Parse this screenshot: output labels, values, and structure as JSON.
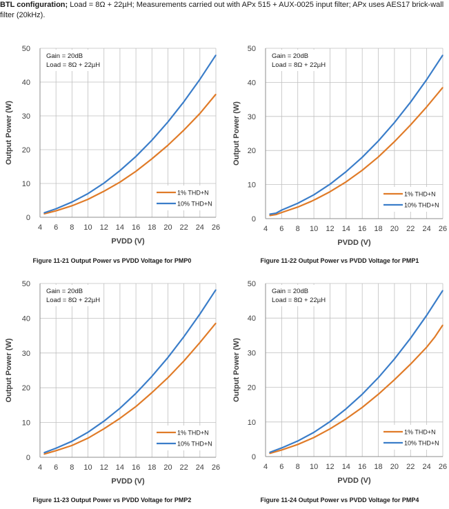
{
  "intro": {
    "bold": "BTL configuration;",
    "text": " Load = 8Ω + 22µH; Measurements carried out with APx 515 + AUX-0025 input filter; APx uses AES17 brick-wall filter (20kHz)."
  },
  "colors": {
    "series_1pct": "#E07B28",
    "series_10pct": "#3A7DC9",
    "grid": "#bfbfbf",
    "axis": "#8c8c8c"
  },
  "chart_data": [
    {
      "type": "line",
      "caption": "Figure 11-21 Output Power vs PVDD Voltage for PMP0",
      "annotation": [
        "Gain = 20dB",
        "Load = 8Ω + 22µH"
      ],
      "xlabel": "PVDD (V)",
      "ylabel": "Output Power (W)",
      "xlim": [
        4,
        26
      ],
      "ylim": [
        0,
        50
      ],
      "xticks": [
        4,
        6,
        8,
        10,
        12,
        14,
        16,
        18,
        20,
        22,
        24,
        26
      ],
      "yticks": [
        0,
        10,
        20,
        30,
        40,
        50
      ],
      "legend": "bottom-right",
      "grid": true,
      "series": [
        {
          "name": "1% THD+N",
          "x": [
            4.5,
            6,
            8,
            10,
            12,
            14,
            16,
            18,
            20,
            22,
            24,
            26
          ],
          "values": [
            1.0,
            1.9,
            3.4,
            5.3,
            7.7,
            10.4,
            13.6,
            17.3,
            21.3,
            25.8,
            30.7,
            36.4
          ]
        },
        {
          "name": "10% THD+N",
          "x": [
            4.5,
            6,
            8,
            10,
            12,
            14,
            16,
            18,
            20,
            22,
            24,
            26
          ],
          "values": [
            1.3,
            2.5,
            4.5,
            7.0,
            10.1,
            13.8,
            18.0,
            22.8,
            28.2,
            34.2,
            40.8,
            48.0
          ]
        }
      ]
    },
    {
      "type": "line",
      "caption": "Figure 11-22 Output Power vs PVDD Voltage for PMP1",
      "annotation": [
        "Gain = 20dB",
        "Load = 8Ω + 22µH"
      ],
      "xlabel": "PVDD (V)",
      "ylabel": "Output Power (W)",
      "xlim": [
        4,
        26
      ],
      "ylim": [
        0,
        50
      ],
      "xticks": [
        4,
        6,
        8,
        10,
        12,
        14,
        16,
        18,
        20,
        22,
        24,
        26
      ],
      "yticks": [
        0,
        10,
        20,
        30,
        40,
        50
      ],
      "legend": "bottom-right",
      "grid": true,
      "series": [
        {
          "name": "1% THD+N",
          "x": [
            4.5,
            5.3,
            6,
            8,
            9.7,
            10.3,
            12,
            14,
            16,
            18,
            20,
            22,
            24,
            26
          ],
          "values": [
            0.9,
            1.2,
            1.8,
            3.4,
            5.1,
            5.8,
            7.9,
            10.8,
            14.2,
            18.1,
            22.6,
            27.5,
            32.8,
            38.5
          ]
        },
        {
          "name": "10% THD+N",
          "x": [
            4.5,
            5.3,
            6,
            8,
            10,
            12,
            14,
            16,
            18,
            20,
            22,
            24,
            26
          ],
          "values": [
            1.3,
            1.6,
            2.5,
            4.5,
            7.0,
            10.1,
            13.8,
            18.0,
            22.8,
            28.2,
            34.2,
            40.8,
            48.0
          ]
        }
      ]
    },
    {
      "type": "line",
      "caption": "Figure 11-23 Output Power vs PVDD Voltage for PMP2",
      "annotation": [
        "Gain = 20dB",
        "Load = 8Ω + 22µH"
      ],
      "xlabel": "PVDD (V)",
      "ylabel": "Output Power (W)",
      "xlim": [
        4,
        26
      ],
      "ylim": [
        0,
        50
      ],
      "xticks": [
        4,
        6,
        8,
        10,
        12,
        14,
        16,
        18,
        20,
        22,
        24,
        26
      ],
      "yticks": [
        0,
        10,
        20,
        30,
        40,
        50
      ],
      "legend": "bottom-right",
      "grid": true,
      "series": [
        {
          "name": "1% THD+N",
          "x": [
            4.5,
            6,
            8,
            10,
            12,
            14,
            16,
            18,
            20,
            22,
            24,
            26
          ],
          "values": [
            0.9,
            1.9,
            3.4,
            5.5,
            8.2,
            11.2,
            14.6,
            18.6,
            22.9,
            27.7,
            33.0,
            38.6
          ]
        },
        {
          "name": "10% THD+N",
          "x": [
            4.5,
            6,
            8,
            10,
            12,
            14,
            16,
            18,
            20,
            22,
            24,
            26
          ],
          "values": [
            1.3,
            2.6,
            4.6,
            7.2,
            10.4,
            14.1,
            18.4,
            23.3,
            28.7,
            34.7,
            41.2,
            48.2
          ]
        }
      ]
    },
    {
      "type": "line",
      "caption": "Figure 11-24 Output Power vs PVDD Voltage for PMP4",
      "annotation": [
        "Gain = 20dB",
        "Load = 8Ω + 22µH"
      ],
      "xlabel": "PVDD (V)",
      "ylabel": "Output Power (W)",
      "xlim": [
        4,
        26
      ],
      "ylim": [
        0,
        50
      ],
      "xticks": [
        4,
        6,
        8,
        10,
        12,
        14,
        16,
        18,
        20,
        22,
        24,
        26
      ],
      "yticks": [
        0,
        10,
        20,
        30,
        40,
        50
      ],
      "legend": "bottom-right",
      "grid": true,
      "series": [
        {
          "name": "1% THD+N",
          "x": [
            4.5,
            6,
            8,
            10,
            12,
            14,
            16,
            18,
            20,
            22,
            24,
            25,
            26
          ],
          "values": [
            0.9,
            1.9,
            3.5,
            5.5,
            8.0,
            10.9,
            14.2,
            18.0,
            22.2,
            26.7,
            31.6,
            34.5,
            38.0
          ]
        },
        {
          "name": "10% THD+N",
          "x": [
            4.5,
            6,
            8,
            10,
            12,
            14,
            16,
            18,
            20,
            22,
            24,
            26
          ],
          "values": [
            1.2,
            2.5,
            4.5,
            7.0,
            10.1,
            13.8,
            18.0,
            22.8,
            28.2,
            34.2,
            40.8,
            48.0
          ]
        }
      ]
    }
  ]
}
